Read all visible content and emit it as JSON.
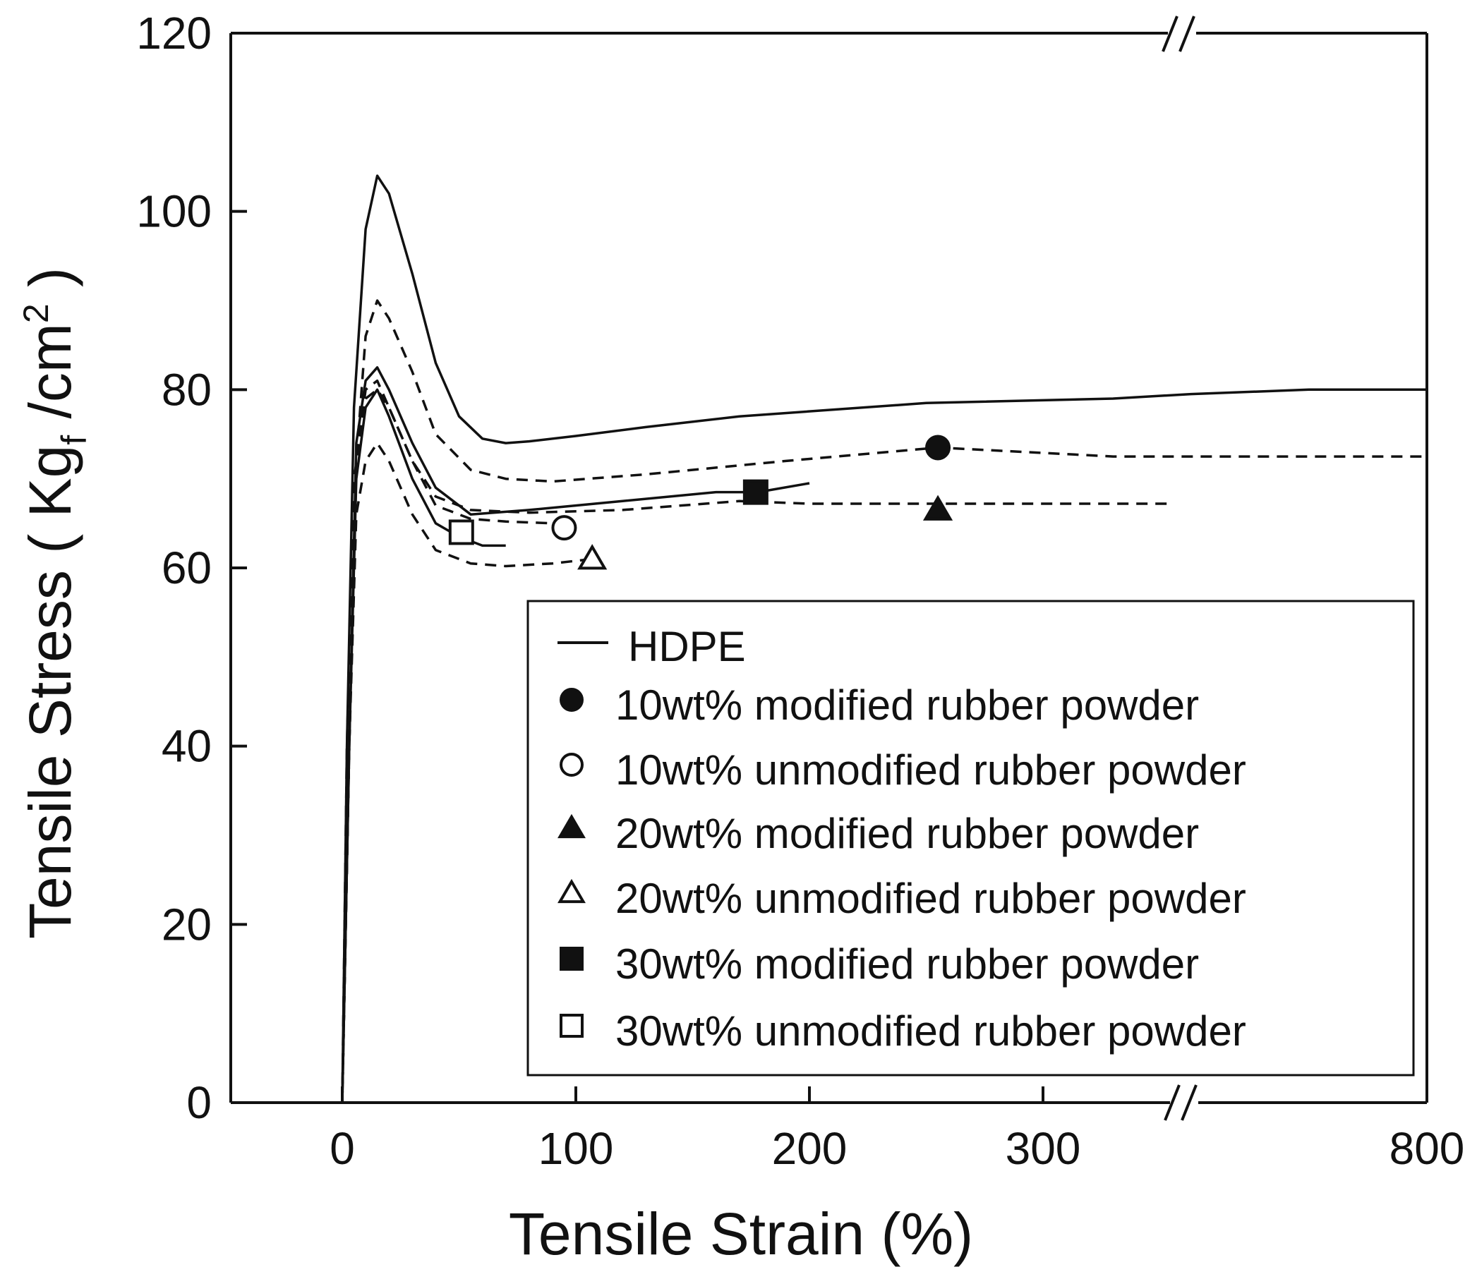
{
  "chart_data": {
    "type": "line",
    "xlabel": "Tensile Strain (%)",
    "ylabel": "Tensile Stress ( Kg",
    "ylabel_sub": "f",
    "ylabel_rest": " /cm",
    "ylabel_sup": "2",
    "ylabel_end": " )",
    "x_ticks": [
      "0",
      "100",
      "200",
      "300",
      "800"
    ],
    "y_ticks": [
      "0",
      "20",
      "40",
      "60",
      "80",
      "100",
      "120"
    ],
    "ylim": [
      0,
      120
    ],
    "x_axis_break": "between 300 and 800",
    "legend_position": "lower-right",
    "grid": false,
    "series": [
      {
        "name": "HDPE",
        "style": "solid",
        "x": [
          0,
          2,
          5,
          10,
          15,
          20,
          30,
          40,
          50,
          60,
          70,
          80,
          100,
          130,
          170,
          250,
          330,
          400,
          600,
          800
        ],
        "y": [
          0,
          40,
          78,
          98,
          104,
          102,
          93,
          83,
          77,
          74.5,
          74,
          74.2,
          74.8,
          75.8,
          77,
          78.5,
          79,
          79.5,
          80,
          80
        ]
      },
      {
        "name": "10wt% modified rubber powder",
        "marker": "filled-circle",
        "style": "dashed",
        "x": [
          0,
          3,
          6,
          10,
          15,
          20,
          30,
          40,
          55,
          70,
          90,
          130,
          190,
          255,
          330,
          500,
          800
        ],
        "y": [
          0,
          40,
          72,
          86,
          90,
          88,
          82,
          75,
          71,
          70,
          69.7,
          70.5,
          72,
          73.5,
          72.5,
          72.5,
          72.5
        ]
      },
      {
        "name": "10wt% unmodified rubber powder",
        "marker": "open-circle",
        "style": "dashed",
        "x": [
          0,
          2,
          5,
          10,
          15,
          20,
          30,
          40,
          55,
          70,
          90,
          96
        ],
        "y": [
          0,
          40,
          70,
          79,
          80,
          78,
          72,
          67,
          65.5,
          65.2,
          65,
          64.5
        ]
      },
      {
        "name": "20wt% modified rubber powder",
        "marker": "filled-triangle",
        "style": "dashed",
        "x": [
          0,
          3,
          6,
          10,
          15,
          20,
          30,
          40,
          55,
          80,
          120,
          170,
          200,
          255,
          300,
          360
        ],
        "y": [
          0,
          40,
          72,
          80,
          81,
          78,
          72,
          68,
          66.5,
          66.2,
          66.5,
          67.5,
          67.2,
          67.2,
          67.2,
          67.2
        ]
      },
      {
        "name": "20wt% unmodified rubber powder",
        "marker": "open-triangle",
        "style": "dashed",
        "x": [
          0,
          3,
          6,
          10,
          15,
          20,
          30,
          40,
          55,
          70,
          90,
          107
        ],
        "y": [
          0,
          40,
          66,
          72,
          74,
          72,
          66,
          62,
          60.5,
          60.2,
          60.5,
          61
        ]
      },
      {
        "name": "30wt% modified rubber powder",
        "marker": "filled-square",
        "style": "solid",
        "x": [
          0,
          3,
          6,
          10,
          15,
          20,
          30,
          40,
          55,
          80,
          120,
          160,
          178,
          200
        ],
        "y": [
          0,
          40,
          74,
          81,
          82.5,
          80,
          74,
          69,
          66,
          66.5,
          67.5,
          68.5,
          68.5,
          69.5
        ]
      },
      {
        "name": "30wt% unmodified rubber powder",
        "marker": "open-square",
        "style": "solid",
        "x": [
          0,
          3,
          6,
          10,
          15,
          20,
          30,
          40,
          50,
          60,
          70
        ],
        "y": [
          0,
          40,
          70,
          78,
          80,
          77,
          70,
          65,
          63.5,
          62.5,
          62.5
        ]
      }
    ],
    "markers": [
      {
        "series": "10wt% modified rubber powder",
        "x": 255,
        "y": 73.5
      },
      {
        "series": "10wt% unmodified rubber powder",
        "x": 95,
        "y": 64.5
      },
      {
        "series": "20wt% modified rubber powder",
        "x": 255,
        "y": 66.5
      },
      {
        "series": "20wt% unmodified rubber powder",
        "x": 107,
        "y": 61
      },
      {
        "series": "30wt% modified rubber powder",
        "x": 177,
        "y": 68.5
      },
      {
        "series": "30wt% unmodified rubber powder",
        "x": 51,
        "y": 64
      }
    ]
  }
}
